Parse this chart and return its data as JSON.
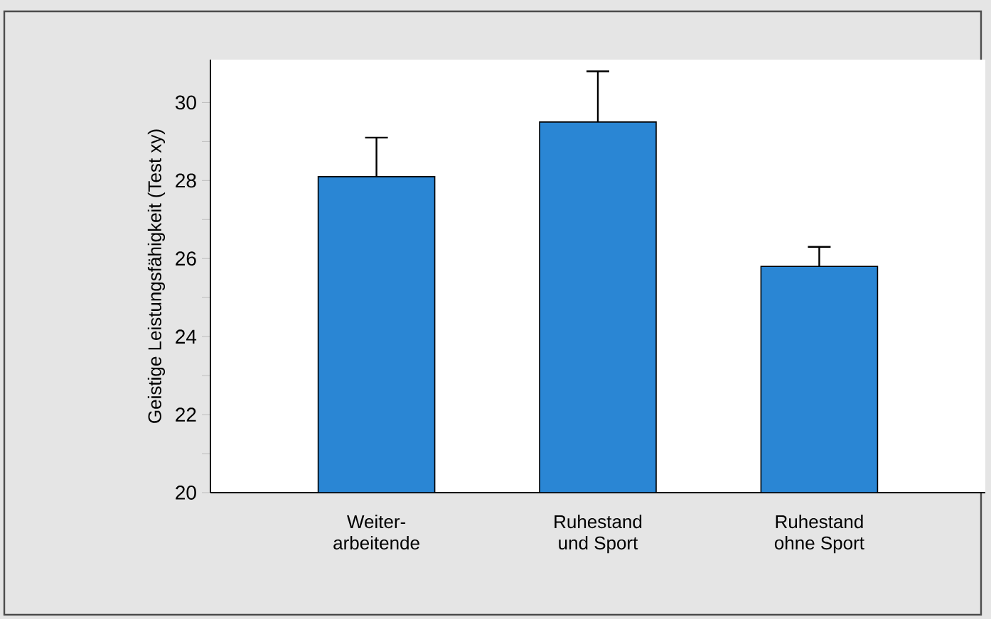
{
  "chart_data": {
    "type": "bar",
    "ylabel": "Geistige Leistungsfähigkeit (Test xy)",
    "categories": [
      "Weiter-\narbeitende",
      "Ruhestand\nund Sport",
      "Ruhestand\nohne Sport"
    ],
    "values": [
      28.1,
      29.5,
      25.8
    ],
    "errors": [
      [
        28.1,
        29.1
      ],
      [
        29.5,
        30.8
      ],
      [
        25.8,
        26.3
      ]
    ],
    "color": "#2a86d4",
    "ylim": [
      20,
      31.1
    ],
    "yticks": [
      20,
      {
        "value": 21,
        "label": null
      },
      22,
      {
        "value": 23,
        "label": null
      },
      24,
      {
        "value": 25,
        "label": null
      },
      26,
      {
        "value": 27,
        "label": null
      },
      28,
      {
        "value": 29,
        "label": null
      },
      30
    ],
    "grid": false
  }
}
